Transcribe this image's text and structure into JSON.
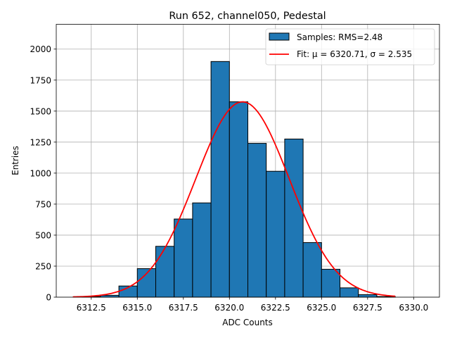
{
  "chart_data": {
    "type": "bar",
    "title": "Run 652, channel050, Pedestal",
    "xlabel": "ADC Counts",
    "ylabel": "Entries",
    "xlim": [
      6310.6,
      6331.4
    ],
    "ylim": [
      0,
      2200
    ],
    "xticks": [
      6312.5,
      6315.0,
      6317.5,
      6320.0,
      6322.5,
      6325.0,
      6327.5,
      6330.0
    ],
    "xtick_labels": [
      "6312.5",
      "6315.0",
      "6317.5",
      "6320.0",
      "6322.5",
      "6325.0",
      "6327.5",
      "6330.0"
    ],
    "yticks": [
      0,
      250,
      500,
      750,
      1000,
      1250,
      1500,
      1750,
      2000
    ],
    "ytick_labels": [
      "0",
      "250",
      "500",
      "750",
      "1000",
      "1250",
      "1500",
      "1750",
      "2000"
    ],
    "grid": true,
    "legend_position": "top-right",
    "histogram": {
      "name": "Samples: RMS=2.48",
      "color": "#1f77b4",
      "edge_color": "#000000",
      "bin_edges": [
        6312,
        6313,
        6314,
        6315,
        6316,
        6317,
        6318,
        6319,
        6320,
        6321,
        6322,
        6323,
        6324,
        6325,
        6326,
        6327,
        6328,
        6329
      ],
      "counts": [
        5,
        15,
        90,
        230,
        410,
        630,
        760,
        1900,
        1575,
        1240,
        1015,
        1275,
        440,
        225,
        75,
        20,
        5
      ]
    },
    "fit": {
      "name": "Fit: μ = 6320.71, σ = 2.535",
      "color": "#ff0000",
      "mu": 6320.71,
      "sigma": 2.535,
      "peak": 1575,
      "x_range": [
        6311.5,
        6329.0
      ]
    }
  }
}
